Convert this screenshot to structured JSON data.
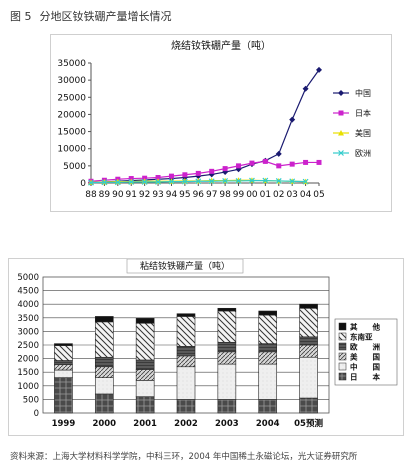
{
  "figure": {
    "number": "图 5",
    "caption": "分地区钕铁硼产量增长情况"
  },
  "source_note": "资料来源：上海大学材料科学学院，中科三环，2004 年中国稀土永磁论坛，光大证券研究所",
  "chart_data": [
    {
      "type": "line",
      "title": "烧结钕铁硼产量（吨）",
      "xlabel": "",
      "ylabel": "",
      "x": [
        "88",
        "89",
        "90",
        "91",
        "92",
        "93",
        "94",
        "95",
        "96",
        "97",
        "98",
        "99",
        "00",
        "01",
        "02",
        "03",
        "04",
        "05"
      ],
      "ylim": [
        0,
        35000
      ],
      "yticks": [
        0,
        5000,
        10000,
        15000,
        20000,
        25000,
        30000,
        35000
      ],
      "grid": false,
      "legend": "right",
      "series": [
        {
          "name": "中国",
          "color": "#1a1a70",
          "marker": "diamond",
          "values": [
            100,
            300,
            500,
            700,
            900,
            1100,
            1300,
            1600,
            2000,
            2500,
            3200,
            4000,
            5500,
            6500,
            8500,
            18500,
            27500,
            33000
          ]
        },
        {
          "name": "日本",
          "color": "#cc22cc",
          "marker": "square",
          "values": [
            500,
            800,
            1100,
            1300,
            1400,
            1600,
            2000,
            2400,
            2800,
            3400,
            4200,
            5000,
            5800,
            6300,
            5000,
            5500,
            6000,
            6000
          ]
        },
        {
          "name": "美国",
          "color": "#e8e000",
          "marker": "triangle",
          "values": [
            200,
            300,
            400,
            400,
            500,
            500,
            500,
            600,
            600,
            700,
            700,
            800,
            800,
            700,
            600,
            500,
            400,
            null
          ]
        },
        {
          "name": "欧洲",
          "color": "#33cccc",
          "marker": "x",
          "values": [
            100,
            200,
            200,
            300,
            300,
            300,
            400,
            400,
            500,
            500,
            600,
            600,
            700,
            700,
            600,
            500,
            400,
            null
          ]
        }
      ]
    },
    {
      "type": "bar",
      "stacked": true,
      "title": "粘结钕铁硼产量（吨）",
      "xlabel": "",
      "ylabel": "",
      "categories": [
        "1999",
        "2000",
        "2001",
        "2002",
        "2003",
        "2004",
        "05预测"
      ],
      "ylim": [
        0,
        5000
      ],
      "yticks": [
        0,
        500,
        1000,
        1500,
        2000,
        2500,
        3000,
        3500,
        4000,
        4500,
        5000
      ],
      "grid": true,
      "legend": "right",
      "series": [
        {
          "name": "日　　本",
          "pattern": "cross",
          "values": [
            1300,
            700,
            600,
            500,
            500,
            500,
            550
          ]
        },
        {
          "name": "中　　国",
          "pattern": "light",
          "values": [
            280,
            600,
            600,
            1200,
            1300,
            1300,
            1500
          ]
        },
        {
          "name": "美　　国",
          "pattern": "hatch",
          "values": [
            200,
            400,
            400,
            400,
            450,
            450,
            450
          ]
        },
        {
          "name": "欧　　洲",
          "pattern": "dark",
          "values": [
            150,
            350,
            350,
            350,
            350,
            300,
            300
          ]
        },
        {
          "name": "东南亚",
          "pattern": "diagonal",
          "values": [
            550,
            1300,
            1350,
            1100,
            1150,
            1050,
            1050
          ]
        },
        {
          "name": "其　　他",
          "pattern": "black",
          "values": [
            70,
            200,
            180,
            100,
            100,
            150,
            150
          ]
        }
      ]
    }
  ]
}
